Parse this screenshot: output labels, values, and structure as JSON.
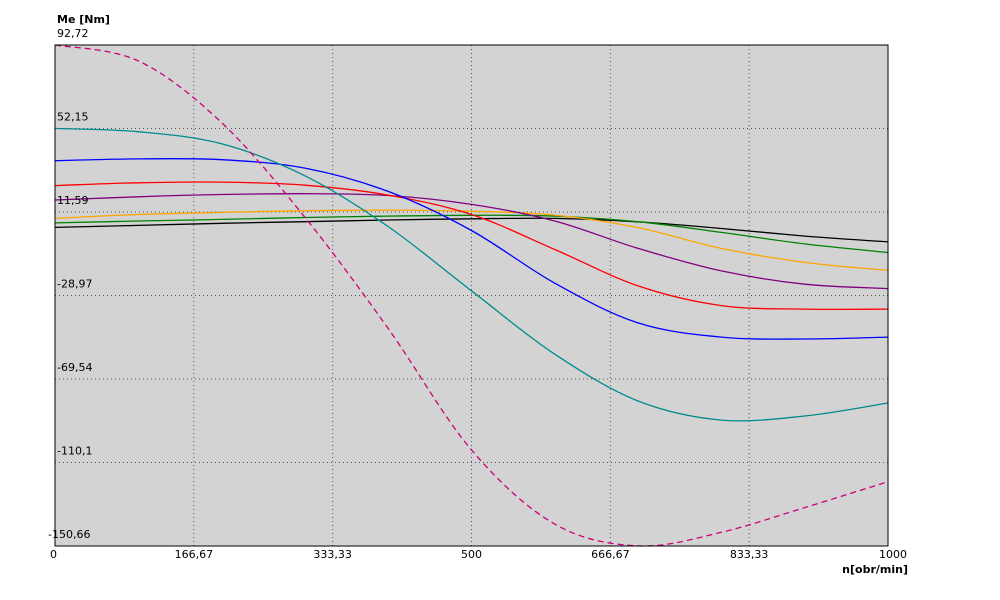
{
  "chart_data": {
    "type": "line",
    "ylabel": "Me [Nm]",
    "xlabel": "n[obr/min]",
    "xlim": [
      0,
      1000
    ],
    "ylim": [
      -150.66,
      92.72
    ],
    "x_ticks": [
      {
        "value": 0,
        "label": "0"
      },
      {
        "value": 166.67,
        "label": "166,67"
      },
      {
        "value": 333.33,
        "label": "333,33"
      },
      {
        "value": 500,
        "label": "500"
      },
      {
        "value": 666.67,
        "label": "666,67"
      },
      {
        "value": 833.33,
        "label": "833,33"
      },
      {
        "value": 1000,
        "label": "1000"
      }
    ],
    "y_ticks": [
      {
        "value": 92.72,
        "label": "92,72"
      },
      {
        "value": 52.15,
        "label": "52,15"
      },
      {
        "value": 11.59,
        "label": "11,59"
      },
      {
        "value": -28.97,
        "label": "-28,97"
      },
      {
        "value": -69.54,
        "label": "-69,54"
      },
      {
        "value": -110.1,
        "label": "-110,1"
      },
      {
        "value": -150.66,
        "label": "-150,66"
      }
    ],
    "grid": true,
    "x": [
      0,
      100,
      200,
      300,
      400,
      500,
      600,
      700,
      800,
      900,
      1000
    ],
    "series": [
      {
        "color": "#000000",
        "style": "solid",
        "values": [
          4.1,
          5.1,
          6.1,
          6.9,
          7.7,
          8.3,
          8.5,
          6.8,
          3.6,
          -0.1,
          -2.9
        ]
      },
      {
        "color": "#008000",
        "style": "solid",
        "values": [
          6.3,
          7.2,
          8.0,
          8.9,
          9.6,
          10.0,
          9.6,
          6.9,
          1.7,
          -3.9,
          -8.1
        ]
      },
      {
        "color": "#FFA500",
        "style": "solid",
        "values": [
          8.5,
          10.4,
          11.4,
          12.2,
          12.5,
          12.0,
          10.1,
          4.0,
          -6.1,
          -12.9,
          -16.8
        ]
      },
      {
        "color": "#800080",
        "style": "solid",
        "values": [
          17.4,
          19.0,
          20.1,
          20.5,
          19.6,
          15.3,
          7.2,
          -6.1,
          -17.0,
          -23.5,
          -25.6
        ]
      },
      {
        "color": "#FF0000",
        "style": "solid",
        "values": [
          24.4,
          25.8,
          26.1,
          24.6,
          19.8,
          10.4,
          -6.6,
          -24.3,
          -33.9,
          -35.6,
          -35.6
        ]
      },
      {
        "color": "#0000FF",
        "style": "solid",
        "values": [
          36.5,
          37.4,
          37.0,
          32.9,
          21.6,
          2.6,
          -23.0,
          -42.3,
          -49.2,
          -50.1,
          -49.2
        ]
      },
      {
        "color": "#008B8B",
        "style": "solid",
        "values": [
          52.2,
          50.6,
          44.7,
          29.2,
          4.5,
          -26.7,
          -57.5,
          -80.2,
          -89.5,
          -87.5,
          -81.2
        ]
      },
      {
        "color": "#CC0077",
        "style": "dashed",
        "values": [
          92.7,
          85.0,
          55.0,
          9.0,
          -45.0,
          -104.0,
          -140.0,
          -150.6,
          -144.0,
          -132.0,
          -119.4
        ]
      }
    ]
  }
}
